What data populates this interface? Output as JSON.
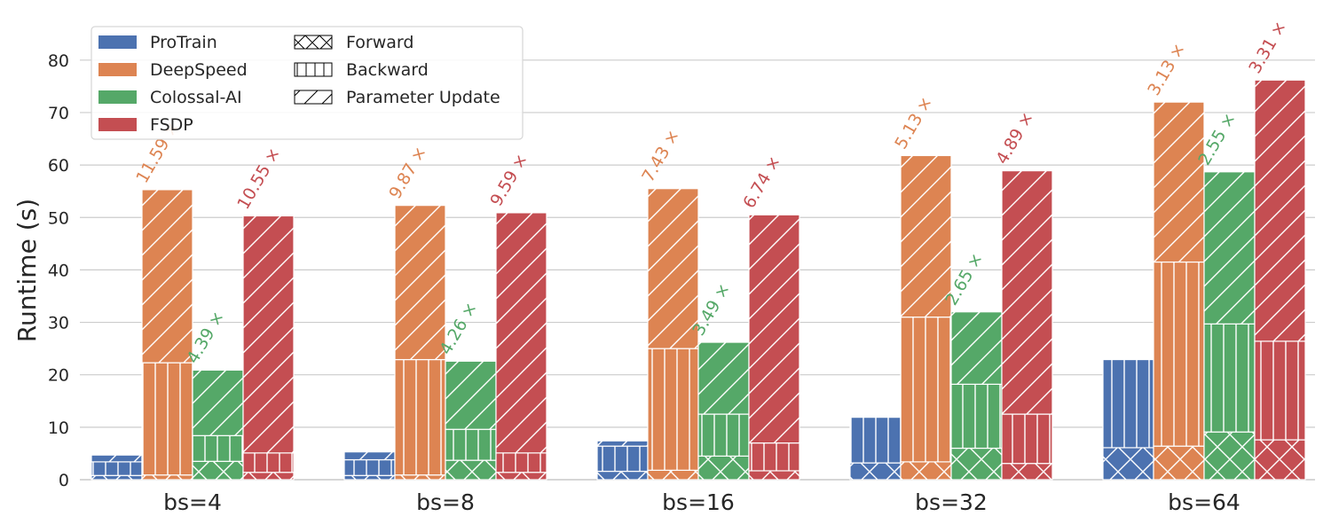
{
  "chart_data": {
    "type": "bar",
    "ylabel": "Runtime (s)",
    "xlabel": "",
    "ylim": [
      0,
      87
    ],
    "yticks": [
      0,
      10,
      20,
      30,
      40,
      50,
      60,
      70,
      80
    ],
    "grid": true,
    "legend_position": "top-left",
    "categories": [
      "bs=4",
      "bs=8",
      "bs=16",
      "bs=32",
      "bs=64"
    ],
    "phases": [
      "Forward",
      "Backward",
      "Parameter Update"
    ],
    "phase_patterns": [
      "cross",
      "vertical",
      "diagonal"
    ],
    "series": [
      {
        "name": "ProTrain",
        "color": "#4c72b0",
        "forward": [
          0.8,
          0.8,
          1.6,
          3.2,
          6.1
        ],
        "backward": [
          2.6,
          3.0,
          4.8,
          8.7,
          16.8
        ],
        "update": [
          1.3,
          1.5,
          1.0,
          0.0,
          0.0
        ],
        "total": [
          4.7,
          5.3,
          7.4,
          11.9,
          22.9
        ],
        "speedup_label": [
          "",
          "",
          "",
          "",
          ""
        ]
      },
      {
        "name": "DeepSpeed",
        "color": "#dd8452",
        "forward": [
          0.9,
          0.9,
          1.8,
          3.4,
          6.4
        ],
        "backward": [
          21.4,
          22.0,
          23.2,
          27.6,
          35.1
        ],
        "update": [
          33.0,
          29.4,
          30.5,
          30.8,
          30.5
        ],
        "total": [
          55.3,
          52.3,
          55.5,
          61.8,
          72.0
        ],
        "speedup_label": [
          "11.59 ×",
          "9.87 ×",
          "7.43 ×",
          "5.13 ×",
          "3.13 ×"
        ]
      },
      {
        "name": "Colossal-AI",
        "color": "#55a868",
        "forward": [
          3.5,
          3.7,
          4.5,
          6.0,
          9.1
        ],
        "backward": [
          4.9,
          5.9,
          8.0,
          12.2,
          20.6
        ],
        "update": [
          12.5,
          13.0,
          13.7,
          13.8,
          29.0
        ],
        "total": [
          20.9,
          22.6,
          26.2,
          32.0,
          58.7
        ],
        "speedup_label": [
          "4.39 ×",
          "4.26 ×",
          "3.49 ×",
          "2.65 ×",
          "2.55 ×"
        ]
      },
      {
        "name": "FSDP",
        "color": "#c44e52",
        "forward": [
          1.4,
          1.4,
          1.7,
          3.1,
          7.6
        ],
        "backward": [
          3.7,
          3.7,
          5.3,
          9.4,
          18.8
        ],
        "update": [
          45.2,
          45.8,
          43.5,
          46.4,
          49.8
        ],
        "total": [
          50.3,
          50.9,
          50.5,
          58.9,
          76.2
        ],
        "speedup_label": [
          "10.55 ×",
          "9.59 ×",
          "6.74 ×",
          "4.89 ×",
          "3.31 ×"
        ]
      }
    ]
  }
}
